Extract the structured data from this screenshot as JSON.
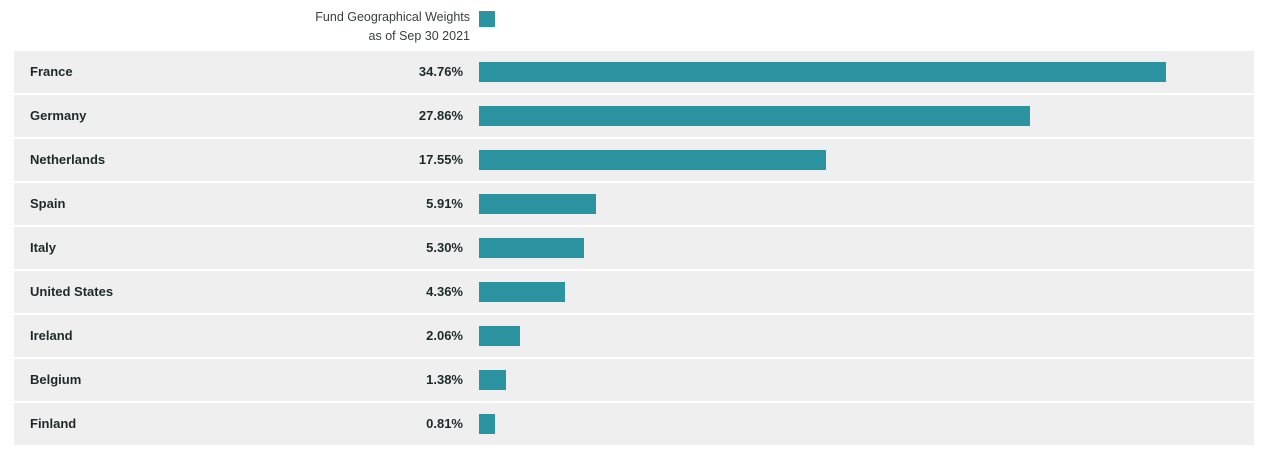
{
  "legend": {
    "label_line1": "Fund Geographical Weights",
    "label_line2": "as of Sep 30 2021"
  },
  "colors": {
    "bar": "#2c93a0",
    "row_background": "#efefef"
  },
  "chart_data": {
    "type": "bar",
    "orientation": "horizontal",
    "categories": [
      "France",
      "Germany",
      "Netherlands",
      "Spain",
      "Italy",
      "United States",
      "Ireland",
      "Belgium",
      "Finland"
    ],
    "values": [
      34.76,
      27.86,
      17.55,
      5.91,
      5.3,
      4.36,
      2.06,
      1.38,
      0.81
    ],
    "value_labels": [
      "34.76%",
      "27.86%",
      "17.55%",
      "5.91%",
      "5.30%",
      "4.36%",
      "2.06%",
      "1.38%",
      "0.81%"
    ],
    "series": [
      {
        "name": "Fund Geographical Weights",
        "values": [
          34.76,
          27.86,
          17.55,
          5.91,
          5.3,
          4.36,
          2.06,
          1.38,
          0.81
        ]
      }
    ],
    "title": "",
    "xlabel": "",
    "ylabel": "",
    "xlim": [
      0,
      34.76
    ],
    "grid": false,
    "legend_position": "top"
  }
}
